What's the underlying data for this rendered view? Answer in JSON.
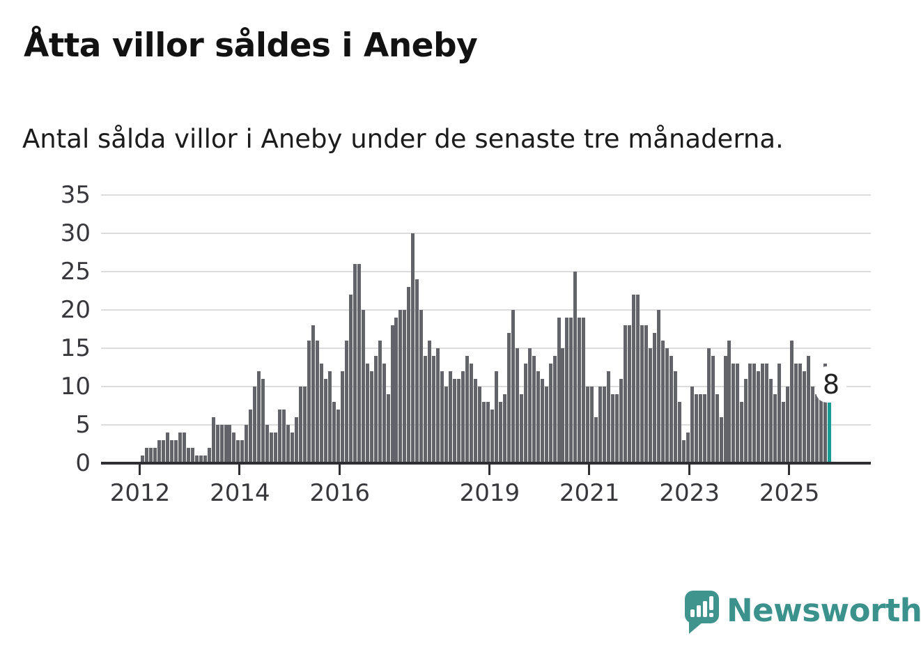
{
  "header": {
    "title": "Åtta villor såldes i Aneby",
    "subtitle": "Antal sålda villor i Aneby under de senaste tre månaderna."
  },
  "chart_data": {
    "type": "bar",
    "title": "Åtta villor såldes i Aneby",
    "subtitle": "Antal sålda villor i Aneby under de senaste tre månaderna.",
    "x_start_month": "2012-01",
    "x_end_month": "2025-10",
    "values": [
      1,
      2,
      2,
      2,
      3,
      3,
      4,
      3,
      3,
      4,
      4,
      2,
      2,
      1,
      1,
      1,
      2,
      6,
      5,
      5,
      5,
      5,
      4,
      3,
      3,
      5,
      7,
      10,
      12,
      11,
      5,
      4,
      4,
      7,
      7,
      5,
      4,
      6,
      10,
      10,
      16,
      18,
      16,
      13,
      11,
      12,
      8,
      7,
      12,
      16,
      22,
      26,
      26,
      20,
      13,
      12,
      14,
      16,
      13,
      9,
      18,
      19,
      20,
      20,
      23,
      30,
      24,
      20,
      14,
      16,
      14,
      15,
      12,
      10,
      12,
      11,
      11,
      12,
      14,
      13,
      11,
      10,
      8,
      8,
      7,
      12,
      8,
      9,
      17,
      20,
      15,
      9,
      13,
      15,
      14,
      12,
      11,
      10,
      13,
      14,
      19,
      15,
      19,
      19,
      25,
      19,
      19,
      10,
      10,
      6,
      10,
      10,
      12,
      9,
      9,
      11,
      18,
      18,
      22,
      22,
      18,
      18,
      15,
      17,
      20,
      16,
      15,
      14,
      12,
      8,
      3,
      4,
      10,
      9,
      9,
      9,
      15,
      14,
      9,
      6,
      14,
      16,
      13,
      13,
      8,
      11,
      13,
      13,
      12,
      13,
      13,
      11,
      9,
      13,
      8,
      10,
      16,
      13,
      13,
      12,
      14,
      10,
      9,
      10,
      13,
      8
    ],
    "ylim": [
      0,
      35
    ],
    "y_ticks": [
      0,
      5,
      10,
      15,
      20,
      25,
      30,
      35
    ],
    "x_tick_labels": [
      "2012",
      "2014",
      "2016",
      "2019",
      "2021",
      "2023",
      "2025"
    ],
    "x_tick_month_indices": [
      0,
      24,
      48,
      84,
      108,
      132,
      156
    ],
    "grid": true,
    "legend": "none",
    "highlight": {
      "index": 165,
      "value": 8,
      "label": "8"
    },
    "colors": {
      "bar": "#63636a",
      "highlight": "#179d96",
      "grid": "#dcdcdc",
      "axis": "#2f2f33",
      "tick_text": "#37373c"
    }
  },
  "annotation": {
    "last_value_label": "8"
  },
  "footer": {
    "brand": "Newsworthy",
    "brand_color": "#3b928c"
  }
}
